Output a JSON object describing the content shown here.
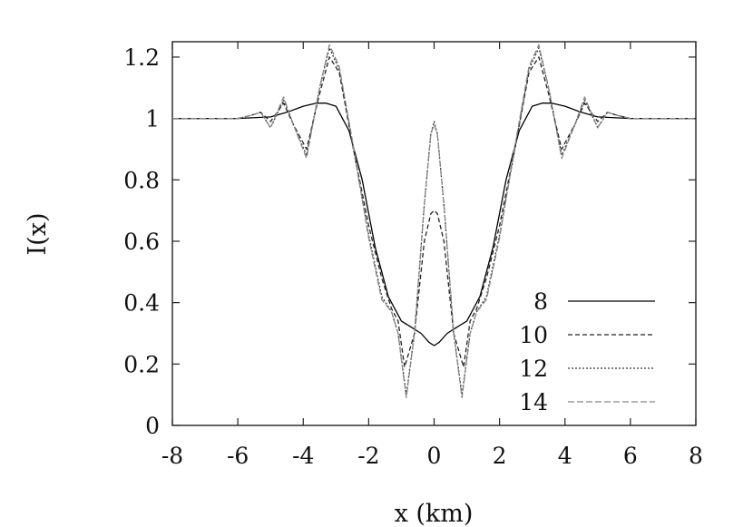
{
  "chart_data": {
    "type": "line",
    "title": "",
    "xlabel": "x (km)",
    "ylabel": "I(x)",
    "xlim": [
      -8,
      8
    ],
    "ylim": [
      0,
      1.25
    ],
    "xticks": [
      "-8",
      "-6",
      "-4",
      "-2",
      "0",
      "2",
      "4",
      "6",
      "8"
    ],
    "yticks": [
      "0",
      "0.2",
      "0.4",
      "0.6",
      "0.8",
      "1",
      "1.2"
    ],
    "grid": false,
    "legend_position": "lower-right",
    "series": [
      {
        "name": "8",
        "color": "#000000",
        "dash": "solid",
        "x": [
          -8,
          -7,
          -6,
          -5,
          -4.5,
          -4,
          -3.6,
          -3.3,
          -3,
          -2.6,
          -2.2,
          -1.8,
          -1.4,
          -1.0,
          -0.7,
          -0.4,
          -0.15,
          0,
          0.15,
          0.4,
          0.7,
          1.0,
          1.4,
          1.8,
          2.2,
          2.6,
          3,
          3.3,
          3.6,
          4,
          4.5,
          5,
          6,
          7,
          8
        ],
        "y": [
          1.0,
          1.0,
          1.0,
          1.005,
          1.02,
          1.04,
          1.05,
          1.05,
          1.04,
          0.96,
          0.8,
          0.58,
          0.42,
          0.34,
          0.32,
          0.3,
          0.27,
          0.26,
          0.27,
          0.3,
          0.32,
          0.34,
          0.42,
          0.58,
          0.8,
          0.96,
          1.04,
          1.05,
          1.05,
          1.04,
          1.02,
          1.005,
          1.0,
          1.0,
          1.0
        ]
      },
      {
        "name": "10",
        "color": "#222222",
        "dash": "5,3",
        "x": [
          -8,
          -6,
          -5.6,
          -5.3,
          -5.0,
          -4.6,
          -4.3,
          -3.9,
          -3.5,
          -3.2,
          -2.9,
          -2.5,
          -2.0,
          -1.6,
          -1.3,
          -1.1,
          -0.9,
          -0.6,
          -0.3,
          -0.1,
          0,
          0.1,
          0.3,
          0.6,
          0.9,
          1.1,
          1.3,
          1.6,
          2.0,
          2.5,
          2.9,
          3.2,
          3.5,
          3.9,
          4.3,
          4.6,
          5.0,
          5.3,
          5.6,
          6,
          8
        ],
        "y": [
          1.0,
          1.0,
          1.01,
          1.02,
          0.99,
          1.05,
          0.98,
          0.9,
          1.08,
          1.2,
          1.15,
          0.92,
          0.65,
          0.48,
          0.38,
          0.34,
          0.19,
          0.3,
          0.6,
          0.69,
          0.7,
          0.69,
          0.6,
          0.3,
          0.19,
          0.34,
          0.38,
          0.48,
          0.65,
          0.92,
          1.15,
          1.2,
          1.08,
          0.9,
          0.98,
          1.05,
          0.99,
          1.02,
          1.01,
          1.0,
          1.0
        ]
      },
      {
        "name": "12",
        "color": "#333333",
        "dash": "2,2",
        "x": [
          -8,
          -6,
          -5.6,
          -5.3,
          -5.0,
          -4.6,
          -4.3,
          -3.9,
          -3.5,
          -3.2,
          -2.9,
          -2.5,
          -2.0,
          -1.6,
          -1.3,
          -1.1,
          -0.85,
          -0.6,
          -0.3,
          -0.1,
          0,
          0.1,
          0.3,
          0.6,
          0.85,
          1.1,
          1.3,
          1.6,
          2.0,
          2.5,
          2.9,
          3.2,
          3.5,
          3.9,
          4.3,
          4.6,
          5.0,
          5.3,
          5.6,
          6,
          8
        ],
        "y": [
          1.0,
          1.0,
          1.01,
          1.02,
          0.97,
          1.06,
          0.98,
          0.88,
          1.1,
          1.23,
          1.16,
          0.92,
          0.62,
          0.42,
          0.37,
          0.3,
          0.1,
          0.3,
          0.72,
          0.95,
          0.99,
          0.95,
          0.72,
          0.3,
          0.1,
          0.3,
          0.37,
          0.42,
          0.62,
          0.92,
          1.16,
          1.23,
          1.1,
          0.88,
          0.98,
          1.06,
          0.97,
          1.02,
          1.01,
          1.0,
          1.0
        ]
      },
      {
        "name": "14",
        "color": "#888888",
        "dash": "7,3",
        "x": [
          -8,
          -6,
          -5.6,
          -5.3,
          -5.0,
          -4.6,
          -4.3,
          -3.9,
          -3.5,
          -3.2,
          -2.9,
          -2.5,
          -2.0,
          -1.6,
          -1.3,
          -1.1,
          -0.85,
          -0.6,
          -0.3,
          -0.1,
          0,
          0.1,
          0.3,
          0.6,
          0.85,
          1.1,
          1.3,
          1.6,
          2.0,
          2.5,
          2.9,
          3.2,
          3.5,
          3.9,
          4.3,
          4.6,
          5.0,
          5.3,
          5.6,
          6,
          8
        ],
        "y": [
          1.0,
          1.0,
          1.01,
          1.02,
          0.97,
          1.07,
          0.98,
          0.87,
          1.1,
          1.24,
          1.17,
          0.93,
          0.61,
          0.41,
          0.37,
          0.3,
          0.09,
          0.3,
          0.72,
          0.95,
          0.98,
          0.95,
          0.72,
          0.3,
          0.09,
          0.3,
          0.37,
          0.41,
          0.61,
          0.93,
          1.17,
          1.24,
          1.1,
          0.87,
          0.98,
          1.07,
          0.97,
          1.02,
          1.01,
          1.0,
          1.0
        ]
      }
    ]
  }
}
